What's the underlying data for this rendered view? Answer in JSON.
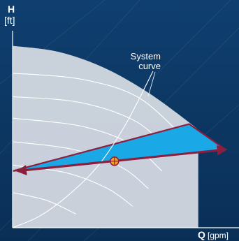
{
  "chart_data": {
    "type": "line",
    "title": "",
    "xlabel": "Q",
    "xunit": "[gpm]",
    "ylabel": "H",
    "yunit": "[ft]",
    "xlim": [
      0,
      100
    ],
    "ylim": [
      0,
      100
    ],
    "grid": false,
    "legend": "none",
    "max_curve": {
      "x": [
        0,
        20,
        40,
        60,
        80,
        82
      ],
      "y": [
        93,
        90,
        82,
        69,
        52,
        49
      ]
    },
    "speed_curves": [
      {
        "x": [
          0,
          30,
          55,
          75
        ],
        "y": [
          79,
          76,
          67,
          47
        ]
      },
      {
        "x": [
          0,
          30,
          55,
          71
        ],
        "y": [
          67,
          64,
          54,
          37
        ]
      },
      {
        "x": [
          0,
          30,
          52,
          66
        ],
        "y": [
          56,
          52,
          43,
          29
        ]
      },
      {
        "x": [
          0,
          27,
          48,
          60
        ],
        "y": [
          44,
          40,
          31,
          20
        ]
      },
      {
        "x": [
          0,
          24,
          42,
          53
        ],
        "y": [
          32,
          28,
          20,
          11
        ]
      },
      {
        "x": [
          0,
          15,
          28
        ],
        "y": [
          18,
          14,
          7
        ]
      }
    ],
    "system_curve": {
      "label": "System curve",
      "x": [
        0,
        12,
        25,
        38,
        50,
        62
      ],
      "y": [
        0,
        6,
        17,
        32,
        53,
        80
      ]
    },
    "control_triangle": {
      "points": [
        [
          0,
          29
        ],
        [
          78,
          53
        ],
        [
          94,
          40
        ]
      ],
      "fill": "#1aa8e6",
      "stroke": "#8c1f3e"
    },
    "arrow": {
      "x": [
        0,
        94
      ],
      "y": [
        29,
        40
      ],
      "color": "#8c1f3e"
    },
    "operating_point": {
      "x": 45,
      "y": 34,
      "color": "#f7a21b"
    },
    "colors": {
      "background": "#0d3763",
      "max_area": "#d4d9e2",
      "curves": "#ffffff",
      "axes": "#ffffff"
    }
  }
}
